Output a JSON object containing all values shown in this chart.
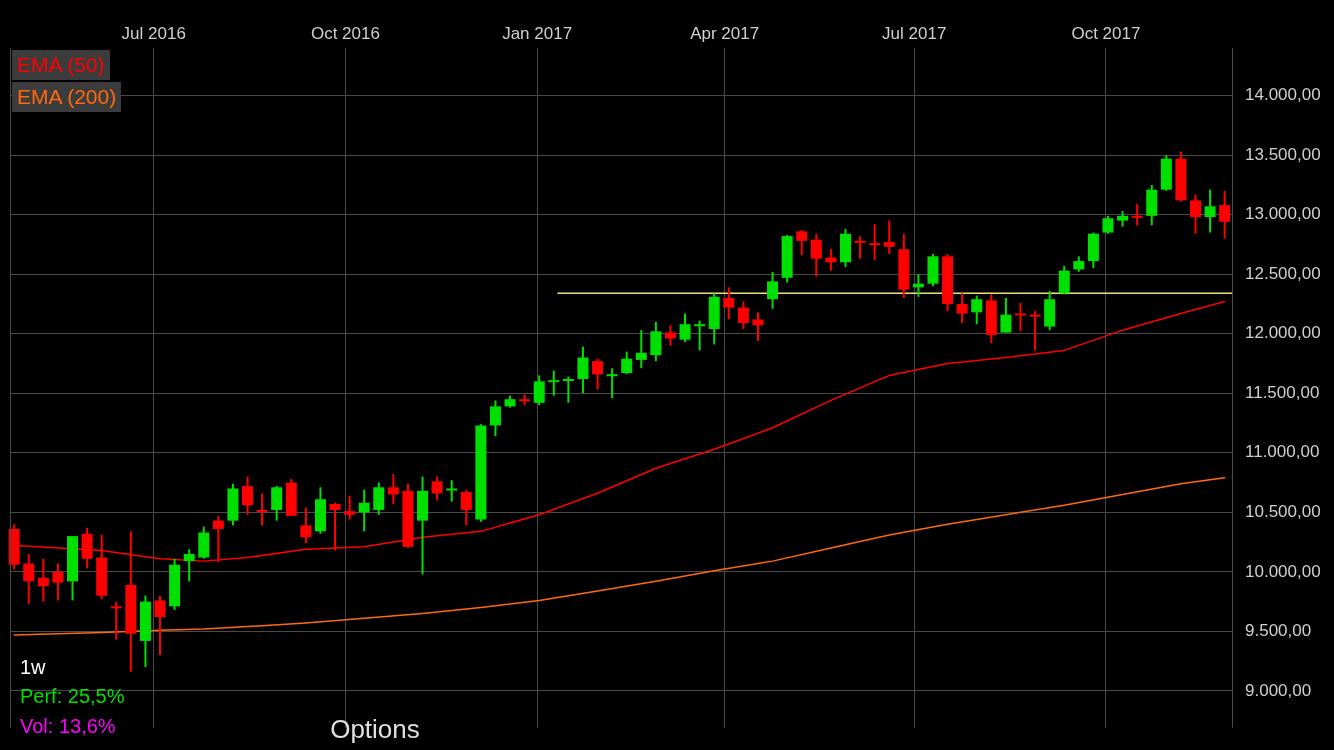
{
  "chart_data": {
    "type": "candlestick",
    "x": [
      "2016-04-25",
      "2016-05-02",
      "2016-05-09",
      "2016-05-16",
      "2016-05-23",
      "2016-05-30",
      "2016-06-06",
      "2016-06-13",
      "2016-06-20",
      "2016-06-27",
      "2016-07-04",
      "2016-07-11",
      "2016-07-18",
      "2016-07-25",
      "2016-08-01",
      "2016-08-08",
      "2016-08-15",
      "2016-08-22",
      "2016-08-29",
      "2016-09-05",
      "2016-09-12",
      "2016-09-19",
      "2016-09-26",
      "2016-10-03",
      "2016-10-10",
      "2016-10-17",
      "2016-10-24",
      "2016-10-31",
      "2016-11-07",
      "2016-11-14",
      "2016-11-21",
      "2016-11-28",
      "2016-12-05",
      "2016-12-12",
      "2016-12-19",
      "2016-12-26",
      "2017-01-02",
      "2017-01-09",
      "2017-01-16",
      "2017-01-23",
      "2017-01-30",
      "2017-02-06",
      "2017-02-13",
      "2017-02-20",
      "2017-02-27",
      "2017-03-06",
      "2017-03-13",
      "2017-03-20",
      "2017-03-27",
      "2017-04-03",
      "2017-04-10",
      "2017-04-17",
      "2017-04-24",
      "2017-05-01",
      "2017-05-08",
      "2017-05-15",
      "2017-05-22",
      "2017-05-29",
      "2017-06-05",
      "2017-06-12",
      "2017-06-19",
      "2017-06-26",
      "2017-07-03",
      "2017-07-10",
      "2017-07-17",
      "2017-07-24",
      "2017-07-31",
      "2017-08-07",
      "2017-08-14",
      "2017-08-21",
      "2017-08-28",
      "2017-09-04",
      "2017-09-11",
      "2017-09-18",
      "2017-09-25",
      "2017-10-02",
      "2017-10-09",
      "2017-10-16",
      "2017-10-23",
      "2017-10-30",
      "2017-11-06",
      "2017-11-13",
      "2017-11-20",
      "2017-11-27"
    ],
    "ohlc": [
      [
        10360,
        10400,
        10020,
        10060
      ],
      [
        10070,
        10150,
        9730,
        9920
      ],
      [
        9950,
        10110,
        9750,
        9880
      ],
      [
        10000,
        10070,
        9760,
        9910
      ],
      [
        9920,
        10300,
        9760,
        10300
      ],
      [
        10320,
        10370,
        10030,
        10110
      ],
      [
        10120,
        10310,
        9770,
        9800
      ],
      [
        9710,
        9750,
        9430,
        9700
      ],
      [
        9890,
        10340,
        9160,
        9480
      ],
      [
        9420,
        9800,
        9200,
        9750
      ],
      [
        9760,
        9800,
        9300,
        9620
      ],
      [
        9710,
        10110,
        9680,
        10060
      ],
      [
        10090,
        10190,
        9920,
        10150
      ],
      [
        10120,
        10380,
        10110,
        10330
      ],
      [
        10430,
        10470,
        10080,
        10360
      ],
      [
        10430,
        10740,
        10390,
        10700
      ],
      [
        10720,
        10800,
        10480,
        10560
      ],
      [
        10520,
        10660,
        10390,
        10510
      ],
      [
        10520,
        10720,
        10430,
        10710
      ],
      [
        10750,
        10780,
        10470,
        10470
      ],
      [
        10390,
        10540,
        10240,
        10290
      ],
      [
        10340,
        10710,
        10320,
        10610
      ],
      [
        10570,
        10580,
        10180,
        10520
      ],
      [
        10510,
        10640,
        10440,
        10480
      ],
      [
        10500,
        10690,
        10340,
        10580
      ],
      [
        10520,
        10750,
        10480,
        10710
      ],
      [
        10710,
        10820,
        10570,
        10650
      ],
      [
        10680,
        10740,
        10200,
        10210
      ],
      [
        10430,
        10800,
        9980,
        10680
      ],
      [
        10760,
        10800,
        10600,
        10660
      ],
      [
        10690,
        10770,
        10590,
        10700
      ],
      [
        10670,
        10690,
        10390,
        10520
      ],
      [
        10440,
        11240,
        10420,
        11230
      ],
      [
        11230,
        11440,
        11140,
        11390
      ],
      [
        11390,
        11480,
        11380,
        11450
      ],
      [
        11450,
        11490,
        11400,
        11440
      ],
      [
        11420,
        11650,
        11400,
        11600
      ],
      [
        11600,
        11690,
        11480,
        11610
      ],
      [
        11610,
        11640,
        11420,
        11620
      ],
      [
        11620,
        11890,
        11500,
        11800
      ],
      [
        11770,
        11790,
        11530,
        11660
      ],
      [
        11650,
        11710,
        11460,
        11660
      ],
      [
        11670,
        11850,
        11660,
        11790
      ],
      [
        11780,
        12030,
        11710,
        11840
      ],
      [
        11820,
        12100,
        11770,
        12020
      ],
      [
        12010,
        12070,
        11900,
        11960
      ],
      [
        11950,
        12170,
        11930,
        12080
      ],
      [
        12070,
        12110,
        11860,
        12080
      ],
      [
        12040,
        12340,
        11910,
        12310
      ],
      [
        12300,
        12390,
        12120,
        12220
      ],
      [
        12220,
        12270,
        12040,
        12090
      ],
      [
        12120,
        12180,
        11940,
        12070
      ],
      [
        12290,
        12520,
        12210,
        12440
      ],
      [
        12470,
        12830,
        12430,
        12820
      ],
      [
        12860,
        12870,
        12660,
        12780
      ],
      [
        12790,
        12840,
        12480,
        12630
      ],
      [
        12640,
        12710,
        12530,
        12600
      ],
      [
        12600,
        12880,
        12560,
        12840
      ],
      [
        12780,
        12820,
        12630,
        12770
      ],
      [
        12760,
        12920,
        12620,
        12750
      ],
      [
        12770,
        12950,
        12670,
        12730
      ],
      [
        12710,
        12840,
        12300,
        12370
      ],
      [
        12390,
        12500,
        12310,
        12420
      ],
      [
        12420,
        12670,
        12400,
        12650
      ],
      [
        12650,
        12670,
        12190,
        12250
      ],
      [
        12250,
        12340,
        12090,
        12170
      ],
      [
        12180,
        12320,
        12080,
        12290
      ],
      [
        12280,
        12330,
        11920,
        11990
      ],
      [
        12010,
        12300,
        12010,
        12160
      ],
      [
        12170,
        12260,
        12020,
        12160
      ],
      [
        12160,
        12190,
        11860,
        12150
      ],
      [
        12060,
        12360,
        12030,
        12290
      ],
      [
        12340,
        12570,
        12330,
        12530
      ],
      [
        12540,
        12650,
        12520,
        12610
      ],
      [
        12610,
        12850,
        12550,
        12840
      ],
      [
        12850,
        12990,
        12840,
        12970
      ],
      [
        12950,
        13030,
        12900,
        12990
      ],
      [
        12990,
        13090,
        12910,
        12980
      ],
      [
        12990,
        13250,
        12910,
        13210
      ],
      [
        13210,
        13500,
        13200,
        13470
      ],
      [
        13470,
        13530,
        13110,
        13120
      ],
      [
        13120,
        13170,
        12840,
        12980
      ],
      [
        12980,
        13210,
        12850,
        13070
      ],
      [
        13080,
        13200,
        12800,
        12940
      ]
    ],
    "colors": [
      "#ff0000",
      "#ff0000",
      "#ff0000",
      "#ff0000",
      "#00e000",
      "#ff0000",
      "#ff0000",
      "#ff0000",
      "#ff0000",
      "#00e000",
      "#ff0000",
      "#00e000",
      "#00e000",
      "#00e000",
      "#ff0000",
      "#00e000",
      "#ff0000",
      "#ff0000",
      "#00e000",
      "#ff0000",
      "#ff0000",
      "#00e000",
      "#ff0000",
      "#ff0000",
      "#00e000",
      "#00e000",
      "#ff0000",
      "#ff0000",
      "#00e000",
      "#ff0000",
      "#00e000",
      "#ff0000",
      "#00e000",
      "#00e000",
      "#00e000",
      "#ff0000",
      "#00e000",
      "#00e000",
      "#00e000",
      "#00e000",
      "#ff0000",
      "#00e000",
      "#00e000",
      "#00e000",
      "#00e000",
      "#ff0000",
      "#00e000",
      "#00e000",
      "#00e000",
      "#ff0000",
      "#ff0000",
      "#ff0000",
      "#00e000",
      "#00e000",
      "#ff0000",
      "#ff0000",
      "#ff0000",
      "#00e000",
      "#ff0000",
      "#ff0000",
      "#ff0000",
      "#ff0000",
      "#00e000",
      "#00e000",
      "#ff0000",
      "#ff0000",
      "#00e000",
      "#ff0000",
      "#00e000",
      "#ff0000",
      "#ff0000",
      "#00e000",
      "#00e000",
      "#00e000",
      "#00e000",
      "#00e000",
      "#00e000",
      "#ff0000",
      "#00e000",
      "#00e000",
      "#ff0000",
      "#ff0000",
      "#00e000",
      "#ff0000"
    ],
    "series": [
      {
        "name": "EMA (50)",
        "type": "line",
        "color": "#ff0000",
        "x": [
          "2016-04-28",
          "2016-06-06",
          "2016-07-04",
          "2016-07-25",
          "2016-08-15",
          "2016-09-12",
          "2016-10-10",
          "2016-11-07",
          "2016-12-05",
          "2017-01-02",
          "2017-01-30",
          "2017-02-27",
          "2017-03-27",
          "2017-04-24",
          "2017-05-22",
          "2017-06-19",
          "2017-07-17",
          "2017-08-14",
          "2017-09-11",
          "2017-10-09",
          "2017-11-06",
          "2017-11-27"
        ],
        "values": [
          10220,
          10180,
          10110,
          10090,
          10120,
          10190,
          10210,
          10290,
          10340,
          10480,
          10660,
          10870,
          11030,
          11210,
          11440,
          11650,
          11750,
          11800,
          11860,
          12030,
          12170,
          12270
        ]
      },
      {
        "name": "EMA (200)",
        "type": "line",
        "color": "#ff6a10",
        "x": [
          "2016-04-25",
          "2016-06-06",
          "2016-07-04",
          "2016-07-25",
          "2016-08-15",
          "2016-09-12",
          "2016-10-10",
          "2016-11-07",
          "2016-12-05",
          "2017-01-02",
          "2017-01-30",
          "2017-02-27",
          "2017-03-27",
          "2017-04-24",
          "2017-05-22",
          "2017-06-19",
          "2017-07-17",
          "2017-08-14",
          "2017-09-11",
          "2017-10-09",
          "2017-11-06",
          "2017-11-27"
        ],
        "values": [
          9470,
          9490,
          9510,
          9520,
          9540,
          9570,
          9610,
          9650,
          9700,
          9760,
          9840,
          9920,
          10010,
          10090,
          10200,
          10310,
          10400,
          10480,
          10560,
          10650,
          10740,
          10790
        ]
      },
      {
        "type": "line",
        "color": "#e8e27a",
        "x": [
          "2017-01-11",
          "2017-12-01"
        ],
        "values": [
          12340,
          12340
        ]
      }
    ],
    "xlim": [
      "2016-04-23",
      "2017-12-01"
    ],
    "ylim": [
      8690,
      14400
    ],
    "xticks": [
      {
        "value": "2016-07-01",
        "label": "Jul 2016"
      },
      {
        "value": "2016-10-01",
        "label": "Oct 2016"
      },
      {
        "value": "2017-01-01",
        "label": "Jan 2017"
      },
      {
        "value": "2017-04-01",
        "label": "Apr 2017"
      },
      {
        "value": "2017-07-01",
        "label": "Jul 2017"
      },
      {
        "value": "2017-10-01",
        "label": "Oct 2017"
      }
    ],
    "yticks": [
      {
        "value": 9000,
        "label": "9.000,00"
      },
      {
        "value": 9500,
        "label": "9.500,00"
      },
      {
        "value": 10000,
        "label": "10.000,00"
      },
      {
        "value": 10500,
        "label": "10.500,00"
      },
      {
        "value": 11000,
        "label": "11.000,00"
      },
      {
        "value": 11500,
        "label": "11.500,00"
      },
      {
        "value": 12000,
        "label": "12.000,00"
      },
      {
        "value": 12500,
        "label": "12.500,00"
      },
      {
        "value": 13000,
        "label": "13.000,00"
      },
      {
        "value": 13500,
        "label": "13.500,00"
      },
      {
        "value": 14000,
        "label": "14.000,00"
      }
    ],
    "grid": true,
    "legend": "top left",
    "annotations": [
      "1w",
      "Perf: 25,5%",
      "Vol: 13,6%",
      "Options"
    ]
  }
}
